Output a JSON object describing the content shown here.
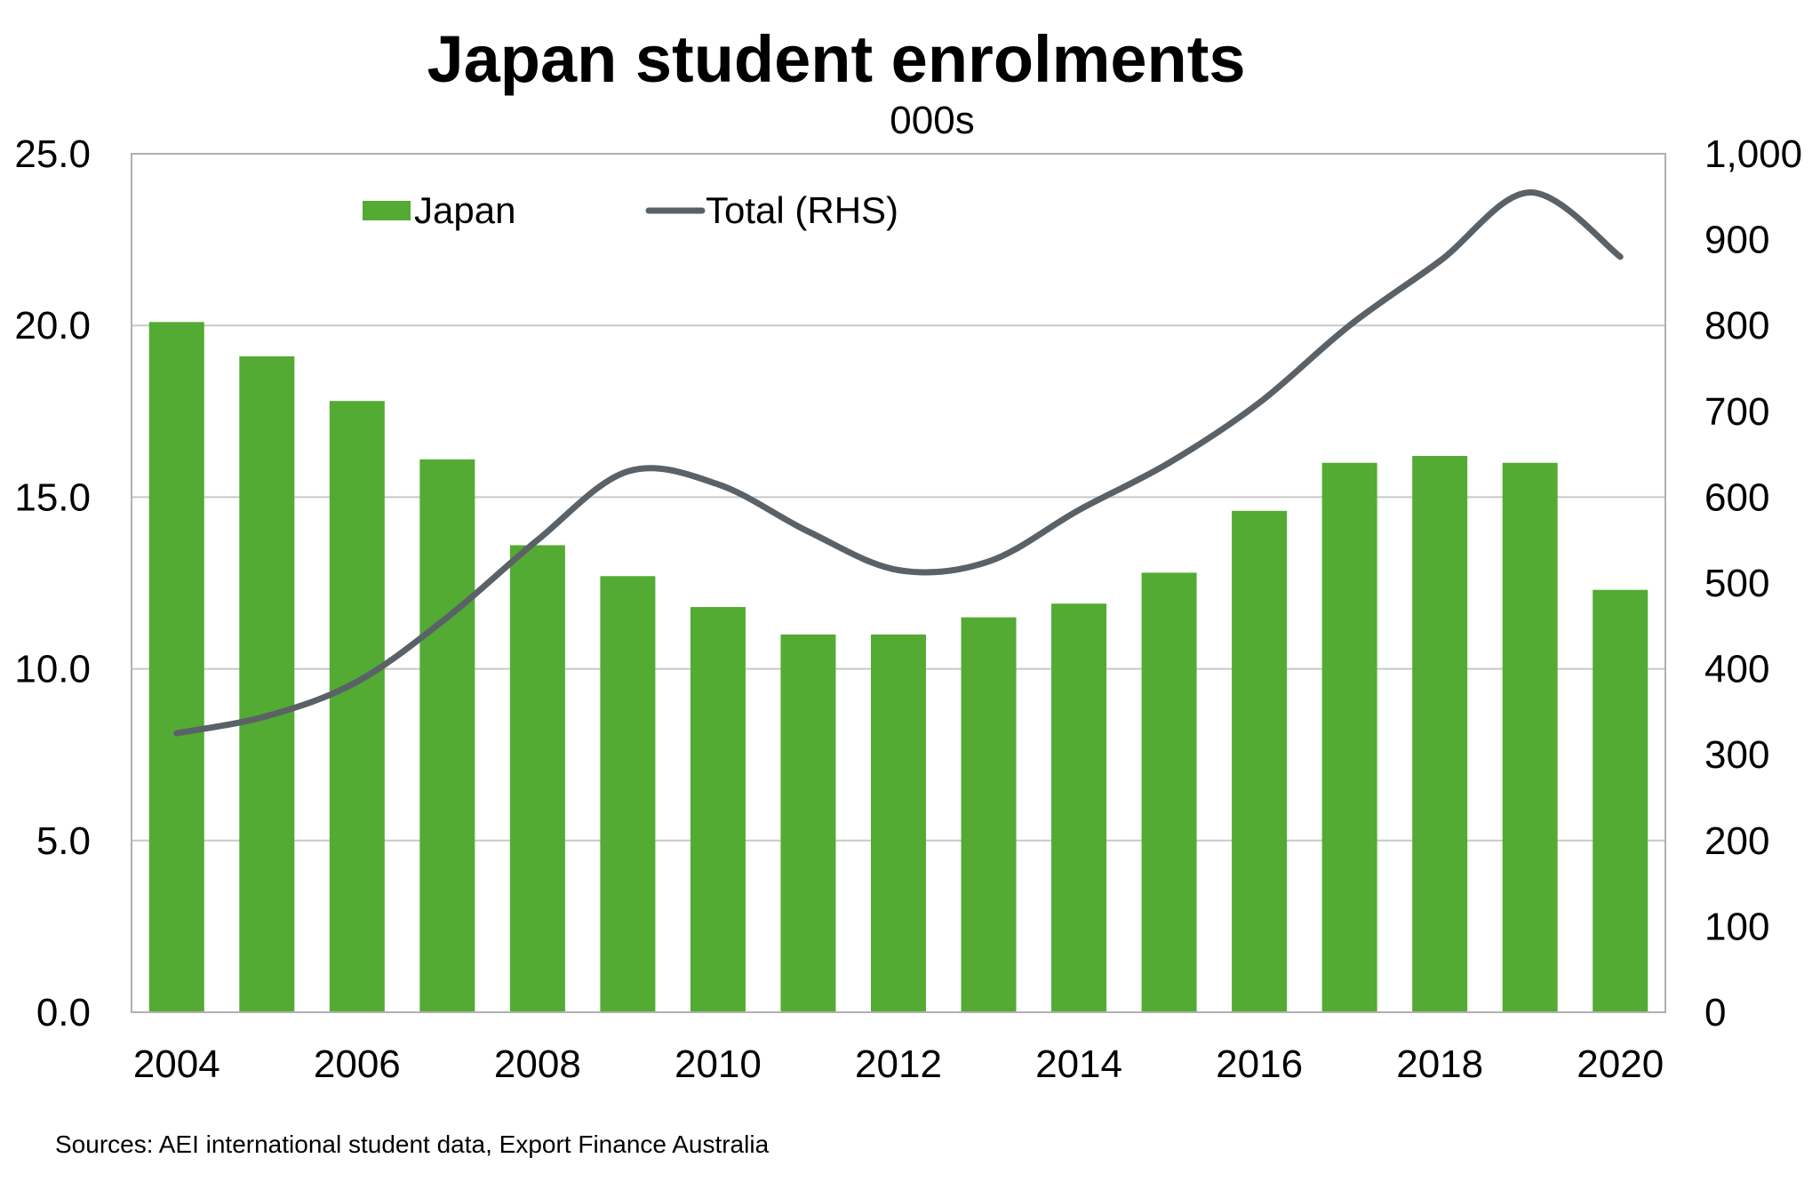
{
  "chart_data": {
    "type": "bar",
    "title": "Japan student enrolments",
    "subtitle": "000s",
    "categories": [
      "2004",
      "2005",
      "2006",
      "2007",
      "2008",
      "2009",
      "2010",
      "2011",
      "2012",
      "2013",
      "2014",
      "2015",
      "2016",
      "2017",
      "2018",
      "2019",
      "2020"
    ],
    "x_tick_labels": [
      "2004",
      "2006",
      "2008",
      "2010",
      "2012",
      "2014",
      "2016",
      "2018",
      "2020"
    ],
    "series": [
      {
        "name": "Japan",
        "type": "bar",
        "axis": "left",
        "color": "#53ab33",
        "values": [
          20.1,
          19.1,
          17.8,
          16.1,
          13.6,
          12.7,
          11.8,
          11.0,
          11.0,
          11.5,
          11.9,
          12.8,
          14.6,
          16.0,
          16.2,
          16.0,
          12.3
        ]
      },
      {
        "name": "Total (RHS)",
        "type": "line",
        "axis": "right",
        "color": "#5a6268",
        "values": [
          325,
          345,
          385,
          460,
          550,
          630,
          615,
          560,
          515,
          525,
          585,
          640,
          710,
          800,
          875,
          955,
          880
        ]
      }
    ],
    "y_left": {
      "min": 0,
      "max": 25,
      "ticks": [
        0,
        5,
        10,
        15,
        20,
        25
      ],
      "tick_labels": [
        "0.0",
        "5.0",
        "10.0",
        "15.0",
        "20.0",
        "25.0"
      ]
    },
    "y_right": {
      "min": 0,
      "max": 1000,
      "ticks": [
        0,
        100,
        200,
        300,
        400,
        500,
        600,
        700,
        800,
        900,
        1000
      ],
      "tick_labels": [
        "0",
        "100",
        "200",
        "300",
        "400",
        "500",
        "600",
        "700",
        "800",
        "900",
        "1,000"
      ]
    },
    "gridlines": [
      5,
      10,
      15,
      20
    ],
    "legend": {
      "position": "top-left",
      "items": [
        {
          "label": "Japan",
          "marker": "bar"
        },
        {
          "label": "Total (RHS)",
          "marker": "line"
        }
      ]
    },
    "source": "Sources: AEI international student data, Export Finance Australia"
  }
}
